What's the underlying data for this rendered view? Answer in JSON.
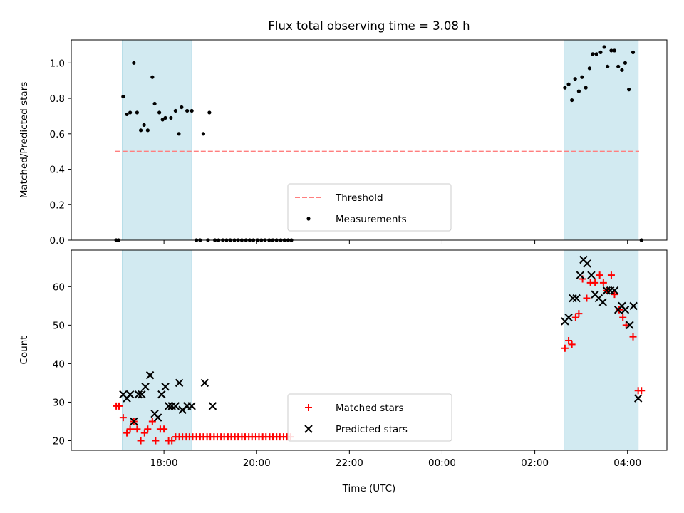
{
  "figure": {
    "title": "Flux total observing time = 3.08 h"
  },
  "chart_data": [
    {
      "type": "scatter",
      "ylabel": "Matched/Predicted stars",
      "xlim_hours": [
        16.0,
        28.85
      ],
      "ylim": [
        0.0,
        1.13
      ],
      "yticks": [
        0.0,
        0.2,
        0.4,
        0.6,
        0.8,
        1.0
      ],
      "ytick_labels": [
        "0.0",
        "0.2",
        "0.4",
        "0.6",
        "0.8",
        "1.0"
      ],
      "shaded_intervals_hours": [
        [
          17.1,
          18.6
        ],
        [
          26.63,
          28.23
        ]
      ],
      "shade_color": "#add8e6",
      "threshold": {
        "name": "Threshold",
        "value": 0.5,
        "from": 16.95,
        "to": 28.25,
        "color": "#ff7f7f"
      },
      "legend": {
        "position": "lower center",
        "entries": [
          "Threshold",
          "Measurements"
        ]
      },
      "series": [
        {
          "name": "Measurements",
          "color": "#000000",
          "marker": "dot",
          "points": [
            [
              16.97,
              0.0
            ],
            [
              17.02,
              0.0
            ],
            [
              17.12,
              0.81
            ],
            [
              17.2,
              0.71
            ],
            [
              17.27,
              0.72
            ],
            [
              17.35,
              1.0
            ],
            [
              17.42,
              0.72
            ],
            [
              17.5,
              0.62
            ],
            [
              17.57,
              0.65
            ],
            [
              17.65,
              0.62
            ],
            [
              17.75,
              0.92
            ],
            [
              17.8,
              0.77
            ],
            [
              17.9,
              0.72
            ],
            [
              17.97,
              0.68
            ],
            [
              18.03,
              0.69
            ],
            [
              18.15,
              0.69
            ],
            [
              18.25,
              0.73
            ],
            [
              18.32,
              0.6
            ],
            [
              18.38,
              0.75
            ],
            [
              18.5,
              0.73
            ],
            [
              18.6,
              0.73
            ],
            [
              18.85,
              0.6
            ],
            [
              18.98,
              0.72
            ],
            [
              18.7,
              0.0
            ],
            [
              18.78,
              0.0
            ],
            [
              18.95,
              0.0
            ],
            [
              19.1,
              0.0
            ],
            [
              19.18,
              0.0
            ],
            [
              19.27,
              0.0
            ],
            [
              19.35,
              0.0
            ],
            [
              19.43,
              0.0
            ],
            [
              19.52,
              0.0
            ],
            [
              19.6,
              0.0
            ],
            [
              19.68,
              0.0
            ],
            [
              19.77,
              0.0
            ],
            [
              19.85,
              0.0
            ],
            [
              19.93,
              0.0
            ],
            [
              20.02,
              0.0
            ],
            [
              20.1,
              0.0
            ],
            [
              20.18,
              0.0
            ],
            [
              20.27,
              0.0
            ],
            [
              20.35,
              0.0
            ],
            [
              20.43,
              0.0
            ],
            [
              20.52,
              0.0
            ],
            [
              20.6,
              0.0
            ],
            [
              20.68,
              0.0
            ],
            [
              20.75,
              0.0
            ],
            [
              26.65,
              0.86
            ],
            [
              26.73,
              0.88
            ],
            [
              26.8,
              0.79
            ],
            [
              26.87,
              0.91
            ],
            [
              26.95,
              0.84
            ],
            [
              27.02,
              0.92
            ],
            [
              27.1,
              0.86
            ],
            [
              27.18,
              0.97
            ],
            [
              27.25,
              1.05
            ],
            [
              27.33,
              1.05
            ],
            [
              27.42,
              1.06
            ],
            [
              27.5,
              1.09
            ],
            [
              27.57,
              0.98
            ],
            [
              27.65,
              1.07
            ],
            [
              27.72,
              1.07
            ],
            [
              27.8,
              0.98
            ],
            [
              27.88,
              0.96
            ],
            [
              27.95,
              1.0
            ],
            [
              28.03,
              0.85
            ],
            [
              28.12,
              1.06
            ],
            [
              28.3,
              0.0
            ]
          ]
        }
      ]
    },
    {
      "type": "scatter",
      "ylabel": "Count",
      "xlabel": "Time (UTC)",
      "xlim_hours": [
        16.0,
        28.85
      ],
      "ylim": [
        17.5,
        69.5
      ],
      "yticks": [
        20,
        30,
        40,
        50,
        60
      ],
      "ytick_labels": [
        "20",
        "30",
        "40",
        "50",
        "60"
      ],
      "xticks_hours": [
        18,
        20,
        22,
        24,
        26,
        28
      ],
      "xtick_labels": [
        "18:00",
        "20:00",
        "22:00",
        "00:00",
        "02:00",
        "04:00"
      ],
      "shaded_intervals_hours": [
        [
          17.1,
          18.6
        ],
        [
          26.63,
          28.23
        ]
      ],
      "shade_color": "#add8e6",
      "legend": {
        "position": "lower center",
        "entries": [
          "Matched stars",
          "Predicted stars"
        ]
      },
      "series": [
        {
          "name": "Matched stars",
          "color": "#ff0000",
          "marker": "plus",
          "points": [
            [
              16.97,
              29
            ],
            [
              17.03,
              29
            ],
            [
              17.12,
              26
            ],
            [
              17.2,
              22
            ],
            [
              17.27,
              23
            ],
            [
              17.35,
              25
            ],
            [
              17.42,
              23
            ],
            [
              17.5,
              20
            ],
            [
              17.58,
              22
            ],
            [
              17.65,
              23
            ],
            [
              17.75,
              25
            ],
            [
              17.82,
              20
            ],
            [
              17.92,
              23
            ],
            [
              18.0,
              23
            ],
            [
              18.1,
              20
            ],
            [
              18.17,
              20
            ],
            [
              18.25,
              21
            ],
            [
              18.33,
              21
            ],
            [
              18.4,
              21
            ],
            [
              18.48,
              21
            ],
            [
              18.55,
              21
            ],
            [
              18.62,
              21
            ],
            [
              18.7,
              21
            ],
            [
              18.78,
              21
            ],
            [
              18.85,
              21
            ],
            [
              18.93,
              21
            ],
            [
              19.0,
              21
            ],
            [
              19.08,
              21
            ],
            [
              19.15,
              21
            ],
            [
              19.23,
              21
            ],
            [
              19.3,
              21
            ],
            [
              19.38,
              21
            ],
            [
              19.45,
              21
            ],
            [
              19.53,
              21
            ],
            [
              19.6,
              21
            ],
            [
              19.68,
              21
            ],
            [
              19.75,
              21
            ],
            [
              19.83,
              21
            ],
            [
              19.9,
              21
            ],
            [
              19.98,
              21
            ],
            [
              20.05,
              21
            ],
            [
              20.13,
              21
            ],
            [
              20.2,
              21
            ],
            [
              20.28,
              21
            ],
            [
              20.35,
              21
            ],
            [
              20.43,
              21
            ],
            [
              20.5,
              21
            ],
            [
              20.58,
              21
            ],
            [
              20.65,
              21
            ],
            [
              20.73,
              21
            ],
            [
              26.65,
              44
            ],
            [
              26.73,
              46
            ],
            [
              26.8,
              45
            ],
            [
              26.88,
              52
            ],
            [
              26.95,
              53
            ],
            [
              27.03,
              62
            ],
            [
              27.12,
              57
            ],
            [
              27.2,
              61
            ],
            [
              27.3,
              61
            ],
            [
              27.4,
              63
            ],
            [
              27.48,
              61
            ],
            [
              27.55,
              59
            ],
            [
              27.65,
              63
            ],
            [
              27.72,
              58
            ],
            [
              27.82,
              54
            ],
            [
              27.9,
              52
            ],
            [
              27.97,
              50
            ],
            [
              28.12,
              47
            ],
            [
              28.23,
              33
            ],
            [
              28.3,
              33
            ]
          ]
        },
        {
          "name": "Predicted stars",
          "color": "#000000",
          "marker": "x",
          "points": [
            [
              17.12,
              32
            ],
            [
              17.2,
              31
            ],
            [
              17.27,
              32
            ],
            [
              17.35,
              25
            ],
            [
              17.45,
              32
            ],
            [
              17.52,
              32
            ],
            [
              17.6,
              34
            ],
            [
              17.7,
              37
            ],
            [
              17.8,
              27
            ],
            [
              17.87,
              26
            ],
            [
              17.95,
              32
            ],
            [
              18.03,
              34
            ],
            [
              18.1,
              29
            ],
            [
              18.17,
              29
            ],
            [
              18.25,
              29
            ],
            [
              18.33,
              35
            ],
            [
              18.4,
              28
            ],
            [
              18.5,
              29
            ],
            [
              18.6,
              29
            ],
            [
              18.88,
              35
            ],
            [
              19.05,
              29
            ],
            [
              26.65,
              51
            ],
            [
              26.73,
              52
            ],
            [
              26.82,
              57
            ],
            [
              26.9,
              57
            ],
            [
              26.98,
              63
            ],
            [
              27.05,
              67
            ],
            [
              27.13,
              66
            ],
            [
              27.22,
              63
            ],
            [
              27.3,
              58
            ],
            [
              27.38,
              57
            ],
            [
              27.47,
              56
            ],
            [
              27.55,
              59
            ],
            [
              27.63,
              59
            ],
            [
              27.72,
              59
            ],
            [
              27.8,
              54
            ],
            [
              27.88,
              55
            ],
            [
              27.95,
              54
            ],
            [
              28.05,
              50
            ],
            [
              28.13,
              55
            ],
            [
              28.23,
              31
            ]
          ]
        }
      ]
    }
  ]
}
